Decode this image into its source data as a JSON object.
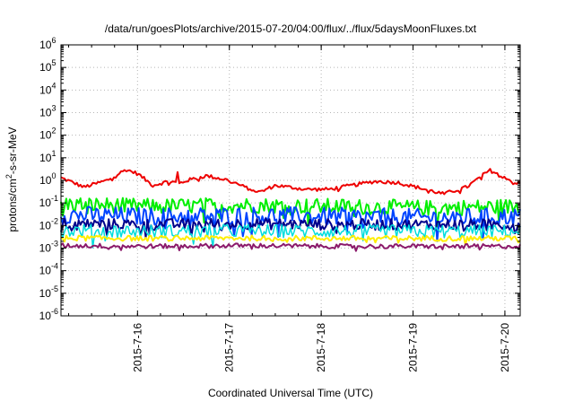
{
  "chart_data": {
    "type": "line",
    "title": "/data/run/goesPlots/archive/2015-07-20/04:00/flux/../flux/5daysMoonFluxes.txt",
    "xlabel": "Coordinated Universal Time (UTC)",
    "ylabel": {
      "prefix": "protons/cm",
      "sup": "2",
      "suffix": "-s-sr-MeV"
    },
    "y_scale": "log",
    "ylim": [
      1e-06,
      1000000.0
    ],
    "y_ticks": [
      {
        "value": 1e-06,
        "base": "10",
        "exp": "-6"
      },
      {
        "value": 1e-05,
        "base": "10",
        "exp": "-5"
      },
      {
        "value": 0.0001,
        "base": "10",
        "exp": "-4"
      },
      {
        "value": 0.001,
        "base": "10",
        "exp": "-3"
      },
      {
        "value": 0.01,
        "base": "10",
        "exp": "-2"
      },
      {
        "value": 0.1,
        "base": "10",
        "exp": "-1"
      },
      {
        "value": 1,
        "base": "10",
        "exp": "0"
      },
      {
        "value": 10.0,
        "base": "10",
        "exp": "1"
      },
      {
        "value": 100.0,
        "base": "10",
        "exp": "2"
      },
      {
        "value": 1000.0,
        "base": "10",
        "exp": "3"
      },
      {
        "value": 10000.0,
        "base": "10",
        "exp": "4"
      },
      {
        "value": 100000.0,
        "base": "10",
        "exp": "5"
      },
      {
        "value": 1000000.0,
        "base": "10",
        "exp": "6"
      }
    ],
    "xlim": [
      "2015-07-15 04:00",
      "2015-07-20 04:00"
    ],
    "x_ticks": [
      {
        "value": "2015-07-16 00:00",
        "label": "2015-7-16"
      },
      {
        "value": "2015-07-17 00:00",
        "label": "2015-7-17"
      },
      {
        "value": "2015-07-18 00:00",
        "label": "2015-7-18"
      },
      {
        "value": "2015-07-19 00:00",
        "label": "2015-7-19"
      },
      {
        "value": "2015-07-20 00:00",
        "label": "2015-7-20"
      }
    ],
    "grid": true,
    "series": [
      {
        "color": "#ee0000",
        "width": 2,
        "noise": 0.08,
        "x": [
          "2015-07-15 04:00",
          "2015-07-15 08:00",
          "2015-07-15 10:00",
          "2015-07-15 16:00",
          "2015-07-15 21:00",
          "2015-07-16 00:00",
          "2015-07-16 04:00",
          "2015-07-16 08:00",
          "2015-07-16 10:00",
          "2015-07-16 10:15",
          "2015-07-16 10:40",
          "2015-07-16 13:00",
          "2015-07-16 18:00",
          "2015-07-17 00:00",
          "2015-07-17 04:00",
          "2015-07-17 08:00",
          "2015-07-17 12:00",
          "2015-07-17 20:00",
          "2015-07-18 02:00",
          "2015-07-18 08:00",
          "2015-07-18 14:00",
          "2015-07-18 20:00",
          "2015-07-19 02:00",
          "2015-07-19 08:00",
          "2015-07-19 14:00",
          "2015-07-19 20:00",
          "2015-07-20 00:00",
          "2015-07-20 02:00",
          "2015-07-20 04:00"
        ],
        "y": [
          1.3,
          0.7,
          0.5,
          1.0,
          3.0,
          2.0,
          0.6,
          0.9,
          0.8,
          7.0,
          0.7,
          1.0,
          1.6,
          1.0,
          0.5,
          0.3,
          0.6,
          0.4,
          0.4,
          0.6,
          0.9,
          0.8,
          0.45,
          0.25,
          0.5,
          2.8,
          1.5,
          0.8,
          0.7
        ]
      },
      {
        "color": "#00ee00",
        "width": 2,
        "noise": 0.35,
        "x": [
          "2015-07-15 04:00",
          "2015-07-16 04:00",
          "2015-07-17 04:00",
          "2015-07-18 04:00",
          "2015-07-19 04:00",
          "2015-07-20 04:00"
        ],
        "y": [
          0.09,
          0.07,
          0.08,
          0.07,
          0.06,
          0.07
        ]
      },
      {
        "color": "#0044ff",
        "width": 2,
        "noise": 0.4,
        "x": [
          "2015-07-15 04:00",
          "2015-07-16 04:00",
          "2015-07-17 04:00",
          "2015-07-18 04:00",
          "2015-07-19 04:00",
          "2015-07-20 04:00"
        ],
        "y": [
          0.03,
          0.025,
          0.028,
          0.025,
          0.022,
          0.025
        ]
      },
      {
        "color": "#00008b",
        "width": 2,
        "noise": 0.25,
        "x": [
          "2015-07-15 04:00",
          "2015-07-16 04:00",
          "2015-07-17 04:00",
          "2015-07-18 04:00",
          "2015-07-19 04:00",
          "2015-07-20 04:00"
        ],
        "y": [
          0.012,
          0.011,
          0.012,
          0.011,
          0.011,
          0.011
        ]
      },
      {
        "color": "#00dddd",
        "width": 1.5,
        "noise": 0.3,
        "x": [
          "2015-07-15 04:00",
          "2015-07-16 04:00",
          "2015-07-17 04:00",
          "2015-07-18 04:00",
          "2015-07-19 04:00",
          "2015-07-20 04:00"
        ],
        "y": [
          0.006,
          0.0055,
          0.006,
          0.0055,
          0.0055,
          0.0055
        ]
      },
      {
        "color": "#ffee00",
        "width": 2,
        "noise": 0.12,
        "x": [
          "2015-07-15 04:00",
          "2015-07-16 04:00",
          "2015-07-17 04:00",
          "2015-07-18 04:00",
          "2015-07-19 04:00",
          "2015-07-20 04:00"
        ],
        "y": [
          0.0028,
          0.0027,
          0.0028,
          0.0027,
          0.0027,
          0.0027
        ]
      },
      {
        "color": "#8b1a6b",
        "width": 2,
        "noise": 0.1,
        "x": [
          "2015-07-15 04:00",
          "2015-07-16 04:00",
          "2015-07-17 04:00",
          "2015-07-18 04:00",
          "2015-07-19 04:00",
          "2015-07-20 04:00"
        ],
        "y": [
          0.0013,
          0.0012,
          0.0013,
          0.0012,
          0.0012,
          0.0012
        ]
      }
    ]
  }
}
